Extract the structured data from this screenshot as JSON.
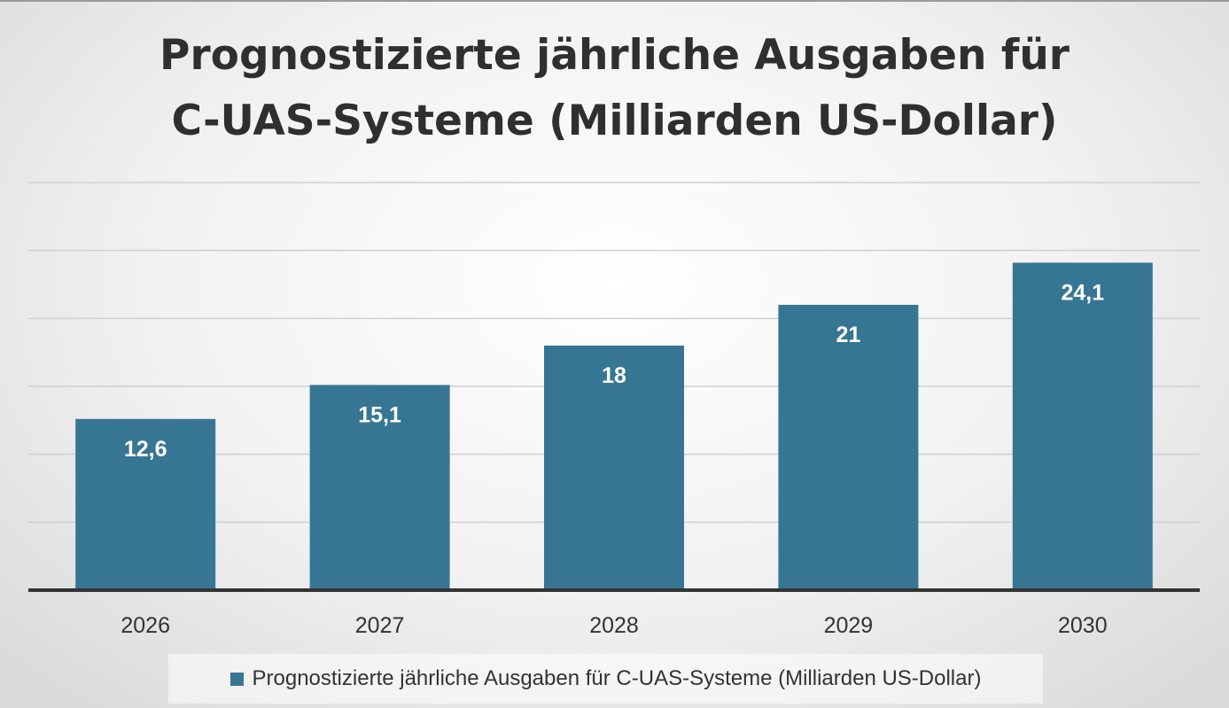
{
  "chart_data": {
    "type": "bar",
    "title": "Prognostizierte jährliche Ausgaben für C-UAS-Systeme (Milliarden US-Dollar)",
    "title_lines": [
      "Prognostizierte jährliche Ausgaben für",
      "C-UAS-Systeme (Milliarden US-Dollar)"
    ],
    "categories": [
      "2026",
      "2027",
      "2028",
      "2029",
      "2030"
    ],
    "series": [
      {
        "name": "Prognostizierte jährliche Ausgaben für C-UAS-Systeme (Milliarden US-Dollar)",
        "values": [
          12.6,
          15.1,
          18,
          21,
          24.1
        ],
        "data_labels": [
          "12,6",
          "15,1",
          "18",
          "21",
          "24,1"
        ],
        "color": "#377693"
      }
    ],
    "xlabel": "",
    "ylabel": "",
    "ylim": [
      0,
      30
    ],
    "grid": true,
    "y_tick_labels_shown": false,
    "legend_position": "bottom"
  },
  "colors": {
    "bar": "#377693",
    "gridline": "#cfcfcf",
    "axis": "#333333",
    "title": "#2f2f2f",
    "data_label": "#ffffff",
    "tick_label": "#333333"
  }
}
